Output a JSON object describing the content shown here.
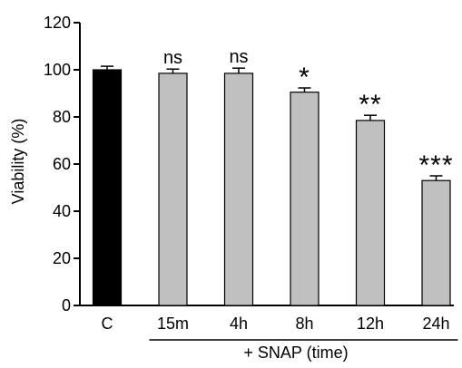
{
  "chart_data": {
    "type": "bar",
    "categories": [
      "C",
      "15m",
      "4h",
      "8h",
      "12h",
      "24h"
    ],
    "values": [
      100,
      98.5,
      98.5,
      90.5,
      78.5,
      53
    ],
    "errors": [
      1.5,
      1.8,
      2.2,
      1.8,
      2.2,
      2.0
    ],
    "significance": [
      "",
      "ns",
      "ns",
      "*",
      "**",
      "***"
    ],
    "bar_colors": [
      "#000000",
      "#c0c0c0",
      "#c0c0c0",
      "#c0c0c0",
      "#c0c0c0",
      "#c0c0c0"
    ],
    "ylabel": "Viability (%)",
    "xlabel": "",
    "group_label": "+ SNAP (time)",
    "ylim": [
      0,
      120
    ],
    "yticks": [
      0,
      20,
      40,
      60,
      80,
      100,
      120
    ],
    "grid": false,
    "legend": "none"
  }
}
